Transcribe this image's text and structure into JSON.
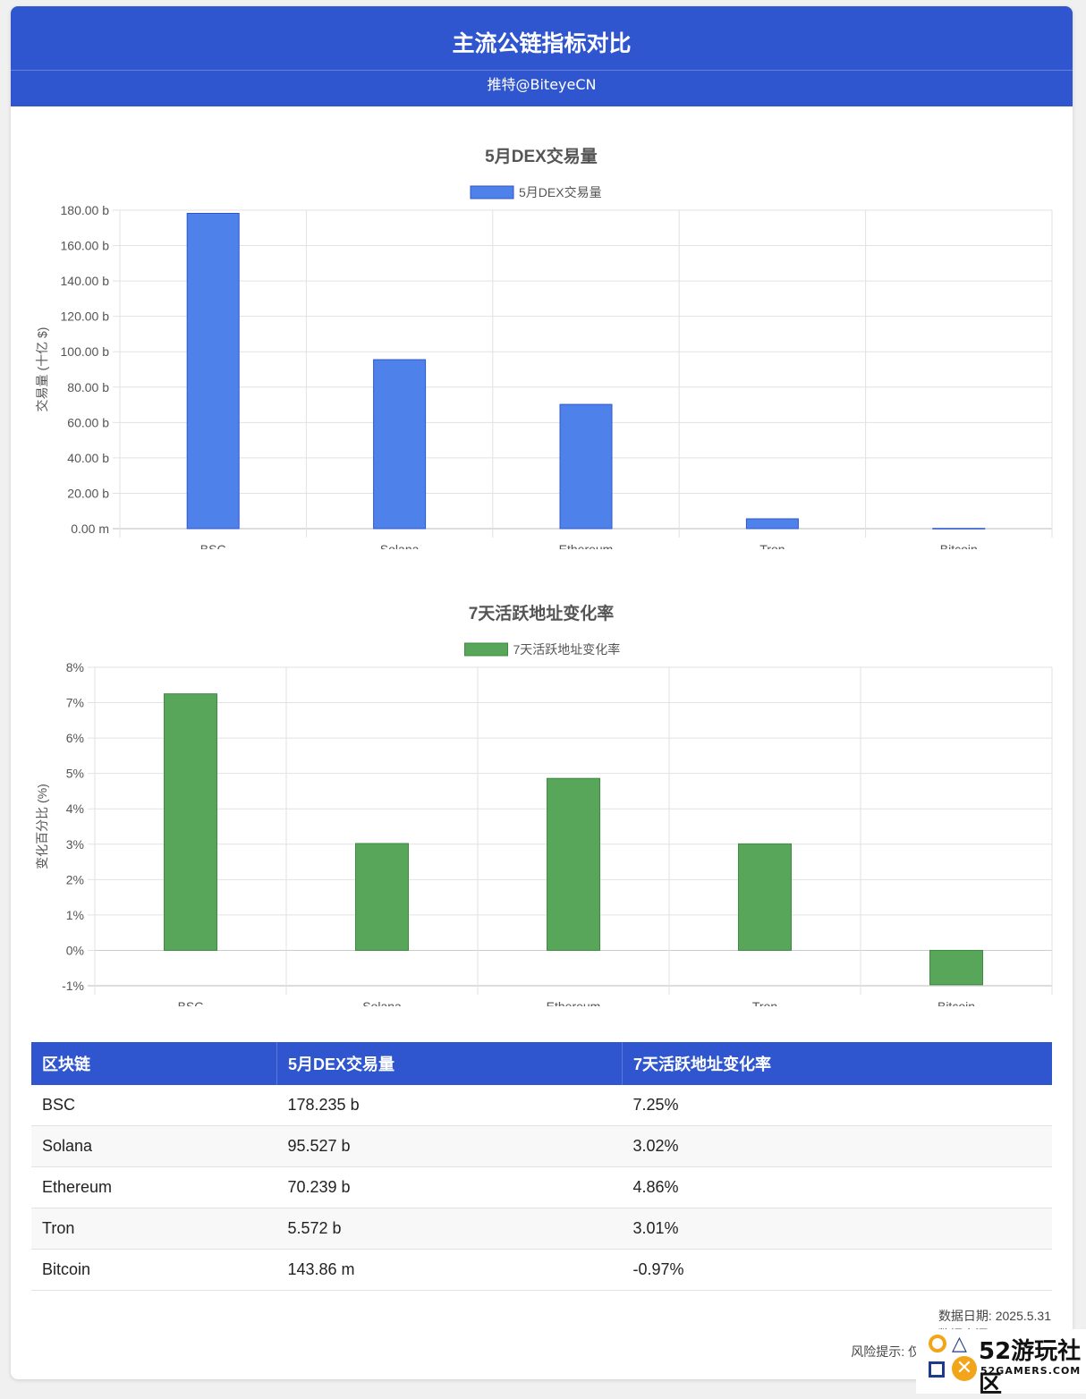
{
  "header": {
    "title": "主流公链指标对比",
    "subtitle": "推特@BiteyeCN"
  },
  "colors": {
    "header_bg": "#2f56ce",
    "dex_bar": "#4f81ea",
    "dex_bar_border": "#2f56ce",
    "active_bar": "#57a65a",
    "active_bar_border": "#3d8a40"
  },
  "chart_data": [
    {
      "type": "bar",
      "title": "5月DEX交易量",
      "legend": "5月DEX交易量",
      "ylabel": "交易量 (十亿 $)",
      "categories": [
        "BSC",
        "Solana",
        "Ethereum",
        "Tron",
        "Bitcoin"
      ],
      "values": [
        178.235,
        95.527,
        70.239,
        5.572,
        0.14386
      ],
      "ylim": [
        0,
        180
      ],
      "yticks": [
        "180.00 b",
        "160.00 b",
        "140.00 b",
        "120.00 b",
        "100.00 b",
        "80.00 b",
        "60.00 b",
        "40.00 b",
        "20.00 b",
        "0.00 m"
      ],
      "grid": true,
      "legend_position": "top"
    },
    {
      "type": "bar",
      "title": "7天活跃地址变化率",
      "legend": "7天活跃地址变化率",
      "ylabel": "变化百分比 (%)",
      "categories": [
        "BSC",
        "Solana",
        "Ethereum",
        "Tron",
        "Bitcoin"
      ],
      "values": [
        7.25,
        3.02,
        4.86,
        3.01,
        -0.97
      ],
      "ylim": [
        -1,
        8
      ],
      "yticks": [
        "8%",
        "7%",
        "6%",
        "5%",
        "4%",
        "3%",
        "2%",
        "1%",
        "0%",
        "-1%"
      ],
      "grid": true,
      "legend_position": "top"
    }
  ],
  "table": {
    "headers": [
      "区块链",
      "5月DEX交易量",
      "7天活跃地址变化率"
    ],
    "rows": [
      [
        "BSC",
        "178.235 b",
        "7.25%"
      ],
      [
        "Solana",
        "95.527 b",
        "3.02%"
      ],
      [
        "Ethereum",
        "70.239 b",
        "4.86%"
      ],
      [
        "Tron",
        "5.572 b",
        "3.01%"
      ],
      [
        "Bitcoin",
        "143.86 m",
        "-0.97%"
      ]
    ]
  },
  "footer": {
    "date": "数据日期: 2025.5.31",
    "source": "数据来源: DefiLlama",
    "risk": "风险提示: 仅"
  },
  "watermark": {
    "brand": "52游玩社区",
    "url": "52GAMERS.COM"
  }
}
